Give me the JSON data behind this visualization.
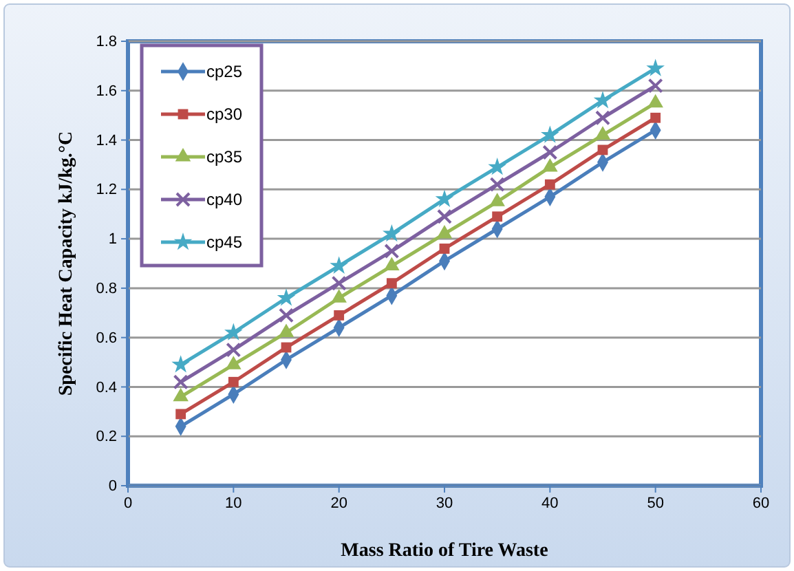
{
  "chart_data": {
    "type": "line",
    "xlabel": "Mass Ratio of Tire Waste",
    "ylabel": "Specific Heat Capacity kJ/kg.°C",
    "x": [
      5,
      10,
      15,
      20,
      25,
      30,
      35,
      40,
      45,
      50
    ],
    "series": [
      {
        "name": "cp25",
        "color": "#4a7ebb",
        "marker": "diamond",
        "values": [
          0.24,
          0.37,
          0.51,
          0.64,
          0.77,
          0.91,
          1.04,
          1.17,
          1.31,
          1.44
        ]
      },
      {
        "name": "cp30",
        "color": "#be4b48",
        "marker": "square",
        "values": [
          0.29,
          0.42,
          0.56,
          0.69,
          0.82,
          0.96,
          1.09,
          1.22,
          1.36,
          1.49
        ]
      },
      {
        "name": "cp35",
        "color": "#98b954",
        "marker": "triangle",
        "values": [
          0.36,
          0.49,
          0.62,
          0.76,
          0.89,
          1.02,
          1.15,
          1.29,
          1.42,
          1.55
        ]
      },
      {
        "name": "cp40",
        "color": "#7d60a0",
        "marker": "cross",
        "values": [
          0.42,
          0.55,
          0.69,
          0.82,
          0.95,
          1.09,
          1.22,
          1.35,
          1.49,
          1.62
        ]
      },
      {
        "name": "cp45",
        "color": "#46aac5",
        "marker": "star",
        "values": [
          0.49,
          0.62,
          0.76,
          0.89,
          1.02,
          1.16,
          1.29,
          1.42,
          1.56,
          1.69
        ]
      }
    ],
    "xlim": [
      0,
      60
    ],
    "xticks": [
      0,
      10,
      20,
      30,
      40,
      50,
      60
    ],
    "ylim": [
      0,
      1.8
    ],
    "yticks": [
      0,
      0.2,
      0.4,
      0.6,
      0.8,
      1,
      1.2,
      1.4,
      1.6,
      1.8
    ],
    "grid": "y",
    "legend": "top left",
    "line_style": "solid"
  }
}
